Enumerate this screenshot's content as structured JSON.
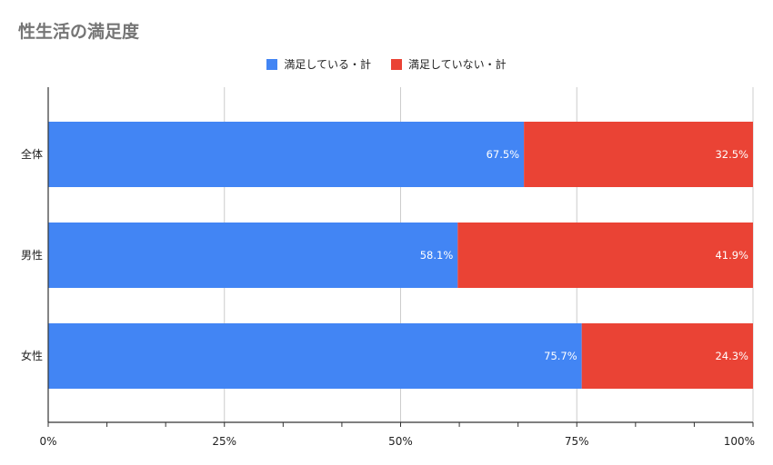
{
  "chart_data": {
    "type": "bar",
    "orientation": "horizontal",
    "stacked": "percent",
    "title": "性生活の満足度",
    "categories": [
      "全体",
      "男性",
      "女性"
    ],
    "series": [
      {
        "name": "満足している・計",
        "values": [
          67.5,
          58.1,
          75.7
        ],
        "labels": [
          "67.5%",
          "58.1%",
          "75.7%"
        ],
        "color": "#4285f4"
      },
      {
        "name": "満足していない・計",
        "values": [
          32.5,
          41.9,
          24.3
        ],
        "labels": [
          "32.5%",
          "41.9%",
          "24.3%"
        ],
        "color": "#ea4335"
      }
    ],
    "xlim": [
      0,
      100
    ],
    "x_ticks": [
      "0%",
      "25%",
      "50%",
      "75%",
      "100%"
    ],
    "grid": true,
    "legend_position": "top"
  }
}
